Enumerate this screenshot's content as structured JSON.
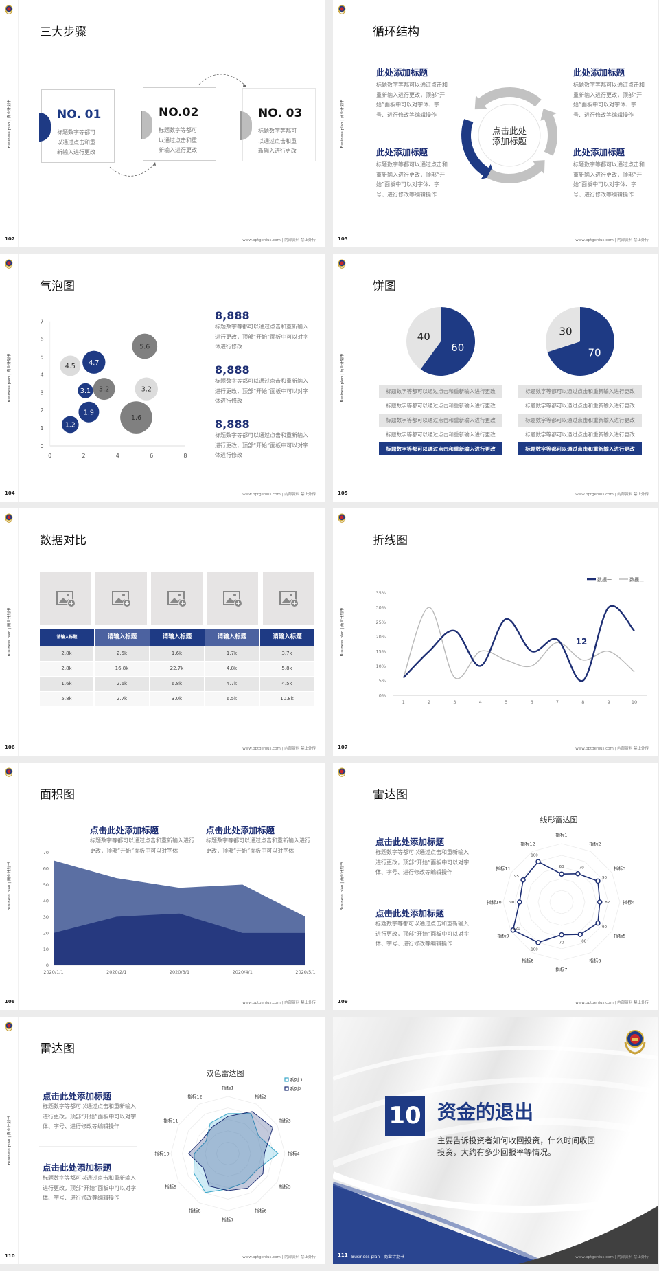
{
  "common": {
    "sidebar_label": "Business plan | 商业计划书",
    "footer": "www.pptgenius.com | 内部资料 禁止外传",
    "logo_icon": "police-emblem-icon"
  },
  "colors": {
    "primary": "#1e3a84",
    "dark_navy": "#1e2f74",
    "mid_blue": "#5b6fa3",
    "light_gray": "#e2e2e2",
    "dark_gray": "#808080",
    "cyan": "#3aa6c8"
  },
  "slides": [
    {
      "page": "102",
      "title": "三大步骤",
      "steps": [
        {
          "number": "NO. 01",
          "text": "标题数字等都可以通过点击和重新输入进行更改"
        },
        {
          "number": "NO.02",
          "text": "标题数字等都可以通过点击和重新输入进行更改"
        },
        {
          "number": "NO. 03",
          "text": "标题数字等都可以通过点击和重新输入进行更改"
        }
      ]
    },
    {
      "page": "103",
      "title": "循环结构",
      "center_text": "点击此处添加标题",
      "blocks": [
        {
          "heading": "此处添加标题",
          "text": "标题数字等都可以通过点击和重新输入进行更改，顶部“开始”面板中可以对字体、字号、进行修改等编辑操作"
        },
        {
          "heading": "此处添加标题",
          "text": "标题数字等都可以通过点击和重新输入进行更改，顶部“开始”面板中可以对字体、字号、进行修改等编辑操作"
        },
        {
          "heading": "此处添加标题",
          "text": "标题数字等都可以通过点击和重新输入进行更改，顶部“开始”面板中可以对字体、字号、进行修改等编辑操作"
        },
        {
          "heading": "此处添加标题",
          "text": "标题数字等都可以通过点击和重新输入进行更改，顶部“开始”面板中可以对字体、字号、进行修改等编辑操作"
        }
      ]
    },
    {
      "page": "104",
      "title": "气泡图",
      "stats": [
        {
          "value": "8,888",
          "text": "标题数字等都可以通过点击和重新输入进行更改，顶部“开始”面板中可以对字体进行修改"
        },
        {
          "value": "8,888",
          "text": "标题数字等都可以通过点击和重新输入进行更改，顶部“开始”面板中可以对字体进行修改"
        },
        {
          "value": "8,888",
          "text": "标题数字等都可以通过点击和重新输入进行更改，顶部“开始”面板中可以对字体进行修改"
        }
      ]
    },
    {
      "page": "105",
      "title": "饼图",
      "left_rows": [
        "标题数字等都可以通过点击和重新输入进行更改",
        "标题数字等都可以通过点击和重新输入进行更改",
        "标题数字等都可以通过点击和重新输入进行更改",
        "标题数字等都可以通过点击和重新输入进行更改",
        "标题数字等都可以通过点击和重新输入进行更改"
      ],
      "right_rows": [
        "标题数字等都可以通过点击和重新输入进行更改",
        "标题数字等都可以通过点击和重新输入进行更改",
        "标题数字等都可以通过点击和重新输入进行更改",
        "标题数字等都可以通过点击和重新输入进行更改",
        "标题数字等都可以通过点击和重新输入进行更改"
      ]
    },
    {
      "page": "106",
      "title": "数据对比",
      "image_icon": "add-image-icon",
      "table": {
        "headers": [
          "请输入标题",
          "请输入标题",
          "请输入标题",
          "请输入标题",
          "请输入标题"
        ],
        "rows": [
          [
            "2.8k",
            "2.5k",
            "1.6k",
            "1.7k",
            "3.7k"
          ],
          [
            "2.8k",
            "16.8k",
            "22.7k",
            "4.8k",
            "5.8k"
          ],
          [
            "1.6k",
            "2.6k",
            "6.8k",
            "4.7k",
            "4.5k"
          ],
          [
            "5.8k",
            "2.7k",
            "3.0k",
            "6.5k",
            "10.8k"
          ]
        ]
      }
    },
    {
      "page": "107",
      "title": "折线图"
    },
    {
      "page": "108",
      "title": "面积图",
      "blocks": [
        {
          "heading": "点击此处添加标题",
          "text": "标题数字等都可以通过点击和重新输入进行更改，顶部“开始”面板中可以对字体"
        },
        {
          "heading": "点击此处添加标题",
          "text": "标题数字等都可以通过点击和重新输入进行更改，顶部“开始”面板中可以对字体"
        }
      ]
    },
    {
      "page": "109",
      "title": "雷达图",
      "blocks": [
        {
          "heading": "点击此处添加标题",
          "text": "标题数字等都可以通过点击和重新输入进行更改，顶部“开始”面板中可以对字体、字号、进行修改等编辑操作"
        },
        {
          "heading": "点击此处添加标题",
          "text": "标题数字等都可以通过点击和重新输入进行更改，顶部“开始”面板中可以对字体、字号、进行修改等编辑操作"
        }
      ]
    },
    {
      "page": "110",
      "title": "雷达图",
      "blocks": [
        {
          "heading": "点击此处添加标题",
          "text": "标题数字等都可以通过点击和重新输入进行更改，顶部“开始”面板中可以对字体、字号、进行修改等编辑操作"
        },
        {
          "heading": "点击此处添加标题",
          "text": "标题数字等都可以通过点击和重新输入进行更改，顶部“开始”面板中可以对字体、字号、进行修改等编辑操作"
        }
      ]
    },
    {
      "page": "111",
      "section_number": "10",
      "section_title": "资金的退出",
      "description": "主要告诉投资者如何收回投资，什么时间收回投资，大约有多少回报率等情况。",
      "footer_label": "Business plan | 商业计划书"
    }
  ],
  "chart_data": [
    {
      "type": "scatter",
      "variant": "bubble",
      "xlim": [
        0,
        8
      ],
      "ylim": [
        0,
        7
      ],
      "xticks": [
        0,
        2,
        4,
        6,
        8
      ],
      "yticks": [
        0,
        1,
        2,
        3,
        4,
        5,
        6,
        7
      ],
      "grid": false,
      "points": [
        {
          "x": 1.2,
          "y": 1.2,
          "size": 37,
          "label": "1.2",
          "color": "#1e3a84"
        },
        {
          "x": 2.3,
          "y": 1.9,
          "size": 45,
          "label": "1.9",
          "color": "#1e3a84"
        },
        {
          "x": 2.1,
          "y": 3.1,
          "size": 33,
          "label": "3.1",
          "color": "#1e3a84"
        },
        {
          "x": 3.2,
          "y": 3.2,
          "size": 48,
          "label": "3.2",
          "color": "#808080"
        },
        {
          "x": 2.6,
          "y": 4.7,
          "size": 50,
          "label": "4.7",
          "color": "#1e3a84"
        },
        {
          "x": 1.2,
          "y": 4.5,
          "size": 45,
          "label": "4.5",
          "color": "#dcdcdc"
        },
        {
          "x": 5.6,
          "y": 5.6,
          "size": 55,
          "label": "5.6",
          "color": "#808080"
        },
        {
          "x": 5.7,
          "y": 3.2,
          "size": 50,
          "label": "3.2",
          "color": "#dcdcdc"
        },
        {
          "x": 5.1,
          "y": 1.6,
          "size": 70,
          "label": "1.6",
          "color": "#808080"
        }
      ]
    },
    {
      "type": "pie",
      "slices": [
        {
          "label": "60",
          "value": 60,
          "color": "#1e3a84"
        },
        {
          "label": "40",
          "value": 40,
          "color": "#e4e4e4"
        }
      ]
    },
    {
      "type": "pie",
      "slices": [
        {
          "label": "70",
          "value": 70,
          "color": "#1e3a84"
        },
        {
          "label": "30",
          "value": 30,
          "color": "#e4e4e4"
        }
      ]
    },
    {
      "type": "line",
      "smooth": true,
      "x": [
        "1",
        "2",
        "3",
        "4",
        "5",
        "6",
        "7",
        "8",
        "9",
        "10"
      ],
      "ylim": [
        0,
        35
      ],
      "yticks": [
        "0%",
        "5%",
        "10%",
        "15%",
        "20%",
        "25%",
        "30%",
        "35%"
      ],
      "legend": "top-right",
      "annotation": "12",
      "series": [
        {
          "name": "数据一",
          "values": [
            6,
            15,
            22,
            10,
            26,
            15,
            19,
            5,
            30,
            22
          ],
          "color": "#1e2f74"
        },
        {
          "name": "数据二",
          "values": [
            6,
            30,
            6,
            15,
            12,
            10,
            18,
            12,
            15,
            8
          ],
          "color": "#b8b8b8"
        }
      ]
    },
    {
      "type": "area",
      "stacked": true,
      "categories": [
        "2020/1/1",
        "2020/2/1",
        "2020/3/1",
        "2020/4/1",
        "2020/5/1"
      ],
      "ylim": [
        0,
        70
      ],
      "yticks": [
        0,
        10,
        20,
        30,
        40,
        50,
        60,
        70
      ],
      "series": [
        {
          "values": [
            20,
            30,
            32,
            20,
            20
          ],
          "color": "#26397f"
        },
        {
          "values": [
            45,
            24,
            16,
            30,
            10
          ],
          "color": "#5b6fa3"
        }
      ]
    },
    {
      "type": "radar",
      "title": "线形雷达图",
      "rmax": 125,
      "axes": [
        "指标1",
        "指标2",
        "指标3",
        "指标4",
        "指标5",
        "指标6",
        "指标7",
        "指标8",
        "指标9",
        "指标10",
        "指标11",
        "指标12"
      ],
      "series": [
        {
          "values": [
            60,
            70,
            90,
            82,
            90,
            80,
            70,
            100,
            120,
            90,
            95,
            100
          ],
          "color": "#1e2f74"
        }
      ]
    },
    {
      "type": "radar",
      "title": "双色雷达图",
      "rmax": 100,
      "legend": "top-right",
      "axes": [
        "指标1",
        "指标2",
        "指标3",
        "指标4",
        "指标5",
        "指标6",
        "指标7",
        "指标8",
        "指标9",
        "指标10",
        "指标11",
        "指标12"
      ],
      "series": [
        {
          "name": "系列 1",
          "values": [
            70,
            81,
            62,
            88,
            58,
            59,
            62,
            79,
            69,
            59,
            44,
            62
          ],
          "color": "#3aa6c8"
        },
        {
          "name": "系列2",
          "values": [
            65,
            85,
            91,
            64,
            71,
            70,
            65,
            66,
            50,
            69,
            51,
            54
          ],
          "color": "#1e2f74"
        }
      ]
    }
  ]
}
